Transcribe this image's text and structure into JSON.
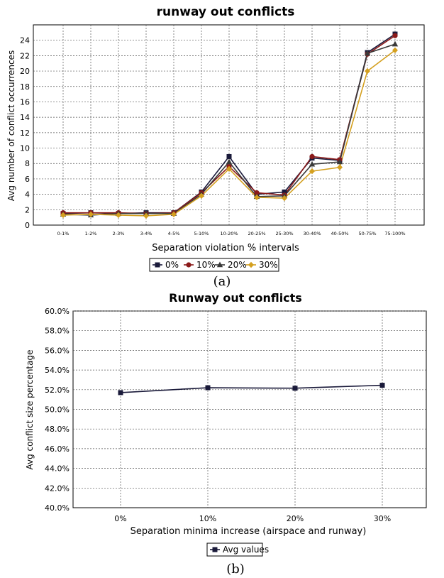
{
  "chart_data": [
    {
      "type": "line",
      "title": "runway out conflicts",
      "xlabel": "Separation violation % intervals",
      "ylabel": "Avg number of conflict occurrences",
      "categories": [
        "0-1%",
        "1-2%",
        "2-3%",
        "3-4%",
        "4-5%",
        "5-10%",
        "10-20%",
        "20-25%",
        "25-30%",
        "30-40%",
        "40-50%",
        "50-75%",
        "75-100%"
      ],
      "ylim": [
        0,
        26
      ],
      "yticks": [
        0,
        2,
        4,
        6,
        8,
        10,
        12,
        14,
        16,
        18,
        20,
        22,
        24
      ],
      "grid": true,
      "legend": "bottom",
      "caption": "(a)",
      "series": [
        {
          "name": "0%",
          "marker": "square",
          "color": "#1a1a3a",
          "values": [
            1.5,
            1.6,
            1.5,
            1.6,
            1.6,
            4.3,
            8.9,
            4.0,
            4.3,
            8.7,
            8.4,
            22.4,
            24.8
          ]
        },
        {
          "name": "10%",
          "marker": "circle",
          "color": "#8b1a1a",
          "values": [
            1.6,
            1.6,
            1.6,
            1.5,
            1.6,
            4.2,
            7.6,
            4.2,
            3.9,
            8.9,
            8.5,
            22.2,
            24.6
          ]
        },
        {
          "name": "20%",
          "marker": "triangle",
          "color": "#3a3a3a",
          "values": [
            1.4,
            1.3,
            1.5,
            1.5,
            1.5,
            4.0,
            8.2,
            3.7,
            3.8,
            7.9,
            8.2,
            22.3,
            23.5
          ]
        },
        {
          "name": "30%",
          "marker": "diamond",
          "color": "#d4a020",
          "values": [
            1.3,
            1.4,
            1.3,
            1.2,
            1.4,
            3.8,
            7.3,
            3.6,
            3.5,
            7.0,
            7.5,
            20.0,
            22.7
          ]
        }
      ]
    },
    {
      "type": "line",
      "title": "Runway out conflicts",
      "xlabel": "Separation minima increase (airspace and runway)",
      "ylabel": "Avg conflict size percentage",
      "categories": [
        "0%",
        "10%",
        "20%",
        "30%"
      ],
      "ylim": [
        40,
        60
      ],
      "yticks": [
        "40.0%",
        "42.0%",
        "44.0%",
        "46.0%",
        "48.0%",
        "50.0%",
        "52.0%",
        "54.0%",
        "56.0%",
        "58.0%",
        "60.0%"
      ],
      "grid": true,
      "legend": "bottom",
      "caption": "(b)",
      "series": [
        {
          "name": "Avg values",
          "marker": "square",
          "color": "#1a1a3a",
          "values": [
            51.7,
            52.2,
            52.15,
            52.45
          ]
        }
      ]
    }
  ]
}
